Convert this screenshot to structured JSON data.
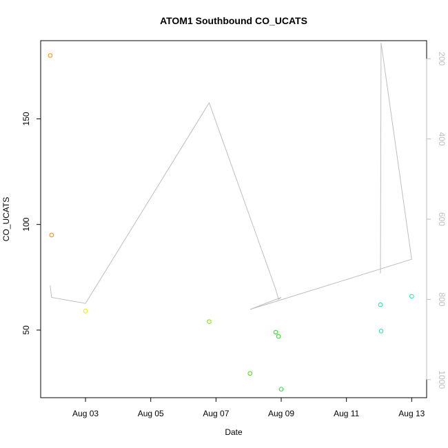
{
  "chart_data": {
    "type": "scatter",
    "title": "ATOM1 Southbound CO_UCATS",
    "xlabel": "Date",
    "ylabel": "CO_UCATS",
    "x_ticks": [
      "Aug 03",
      "Aug 05",
      "Aug 07",
      "Aug 09",
      "Aug 11",
      "Aug 13"
    ],
    "x_tick_dates": [
      "2016-08-03",
      "2016-08-05",
      "2016-08-07",
      "2016-08-09",
      "2016-08-11",
      "2016-08-13"
    ],
    "xlim": [
      "2016-08-01T15:00",
      "2016-08-13T11:00"
    ],
    "y_ticks": [
      50,
      100,
      150
    ],
    "ylim": [
      18,
      187
    ],
    "y_right_ticks": [
      200,
      400,
      600,
      800,
      1000
    ],
    "y_right_lim": [
      1045,
      155
    ],
    "y_right_reversed": true,
    "y_right_color": "#bebebe",
    "grid": false,
    "legend": "none",
    "series": [
      {
        "role": "scatter",
        "marker": "open-circle",
        "points": [
          {
            "x": "2016-08-01T22:00",
            "y": 180,
            "color": "#ff8c00"
          },
          {
            "x": "2016-08-01T23:00",
            "y": 95,
            "color": "#ff8c00"
          },
          {
            "x": "2016-08-03T00:00",
            "y": 59,
            "color": "#e6f000"
          },
          {
            "x": "2016-08-06T19:00",
            "y": 54,
            "color": "#80e000"
          },
          {
            "x": "2016-08-08T01:00",
            "y": 29.5,
            "color": "#40e000"
          },
          {
            "x": "2016-08-08T20:00",
            "y": 49,
            "color": "#20e020"
          },
          {
            "x": "2016-08-08T22:00",
            "y": 47,
            "color": "#20e020"
          },
          {
            "x": "2016-08-09T00:00",
            "y": 22,
            "color": "#20e040"
          },
          {
            "x": "2016-08-12T01:00",
            "y": 62,
            "color": "#20e0a0"
          },
          {
            "x": "2016-08-12T01:30",
            "y": 49.5,
            "color": "#20e0a0"
          },
          {
            "x": "2016-08-13T00:00",
            "y": 66,
            "color": "#20e0a0"
          }
        ]
      },
      {
        "role": "line",
        "axis": "right",
        "color": "#bebebe",
        "points": [
          {
            "x": "2016-08-01T22:00",
            "y": 765
          },
          {
            "x": "2016-08-01T23:00",
            "y": 795
          },
          {
            "x": "2016-08-03T00:00",
            "y": 810
          },
          {
            "x": "2016-08-06T19:00",
            "y": 310
          },
          {
            "x": "2016-08-08T20:00",
            "y": 775
          },
          {
            "x": "2016-08-08T22:00",
            "y": 800
          },
          {
            "x": "2016-08-09T00:00",
            "y": 795
          },
          {
            "x": "2016-08-08T01:00",
            "y": 825
          },
          {
            "x": "2016-08-13T00:00",
            "y": 700
          },
          {
            "x": "2016-08-12T01:30",
            "y": 160
          },
          {
            "x": "2016-08-12T01:00",
            "y": 735
          }
        ]
      }
    ]
  }
}
